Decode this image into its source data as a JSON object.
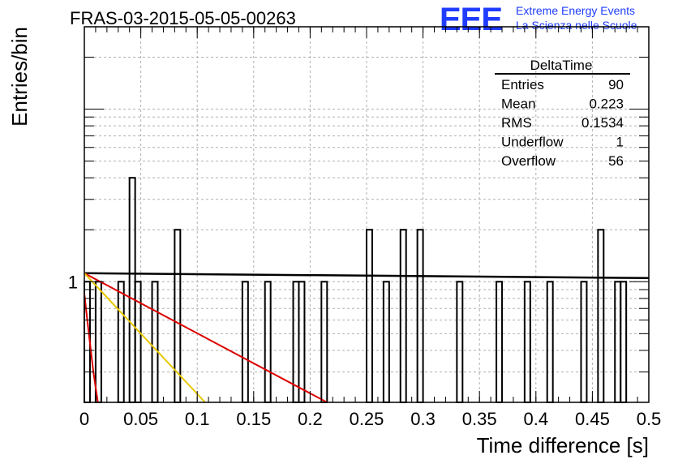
{
  "header": {
    "title": "FRAS-03-2015-05-05-00263",
    "logo": "EEE",
    "logo_line1": "Extreme Energy Events",
    "logo_line2": "La Scienza nelle Scuole"
  },
  "chart_data": {
    "type": "bar",
    "title": "FRAS-03-2015-05-05-00263",
    "xlabel": "Time difference [s]",
    "ylabel": "Entries/bin",
    "xlim": [
      0,
      0.5
    ],
    "ylim": [
      0.2,
      30
    ],
    "log_y": true,
    "grid": true,
    "x_ticks": [
      "0",
      "0.05",
      "0.1",
      "0.15",
      "0.2",
      "0.25",
      "0.3",
      "0.35",
      "0.4",
      "0.45",
      "0.5"
    ],
    "y_ticks": [
      "1"
    ],
    "bin_width": 0.005,
    "bins": [
      {
        "x": 0.0,
        "value": 1
      },
      {
        "x": 0.01,
        "value": 1
      },
      {
        "x": 0.03,
        "value": 1
      },
      {
        "x": 0.04,
        "value": 4
      },
      {
        "x": 0.045,
        "value": 1
      },
      {
        "x": 0.06,
        "value": 1
      },
      {
        "x": 0.08,
        "value": 2
      },
      {
        "x": 0.14,
        "value": 1
      },
      {
        "x": 0.16,
        "value": 1
      },
      {
        "x": 0.185,
        "value": 1
      },
      {
        "x": 0.19,
        "value": 1
      },
      {
        "x": 0.21,
        "value": 1
      },
      {
        "x": 0.25,
        "value": 2
      },
      {
        "x": 0.265,
        "value": 1
      },
      {
        "x": 0.28,
        "value": 2
      },
      {
        "x": 0.295,
        "value": 2
      },
      {
        "x": 0.33,
        "value": 1
      },
      {
        "x": 0.365,
        "value": 1
      },
      {
        "x": 0.39,
        "value": 1
      },
      {
        "x": 0.41,
        "value": 1
      },
      {
        "x": 0.44,
        "value": 1
      },
      {
        "x": 0.455,
        "value": 2
      },
      {
        "x": 0.47,
        "value": 1
      },
      {
        "x": 0.475,
        "value": 1
      }
    ],
    "fits": [
      {
        "color": "#000000",
        "points": [
          [
            0,
            1.12
          ],
          [
            0.5,
            1.05
          ]
        ]
      },
      {
        "color": "#dd0000",
        "points": [
          [
            0,
            1.12
          ],
          [
            0.215,
            0.2
          ]
        ]
      },
      {
        "color": "#e8c800",
        "points": [
          [
            0,
            1.12
          ],
          [
            0.107,
            0.2
          ]
        ]
      },
      {
        "color": "#dd0000",
        "points": [
          [
            0,
            0.85
          ],
          [
            0.004,
            0.5
          ],
          [
            0.008,
            0.3
          ],
          [
            0.012,
            0.2
          ]
        ]
      }
    ],
    "stats": {
      "name": "DeltaTime",
      "rows": [
        {
          "label": "Entries",
          "value": "90"
        },
        {
          "label": "Mean",
          "value": "0.223"
        },
        {
          "label": "RMS",
          "value": "0.1534"
        },
        {
          "label": "Underflow",
          "value": "1"
        },
        {
          "label": "Overflow",
          "value": "56"
        }
      ]
    }
  }
}
